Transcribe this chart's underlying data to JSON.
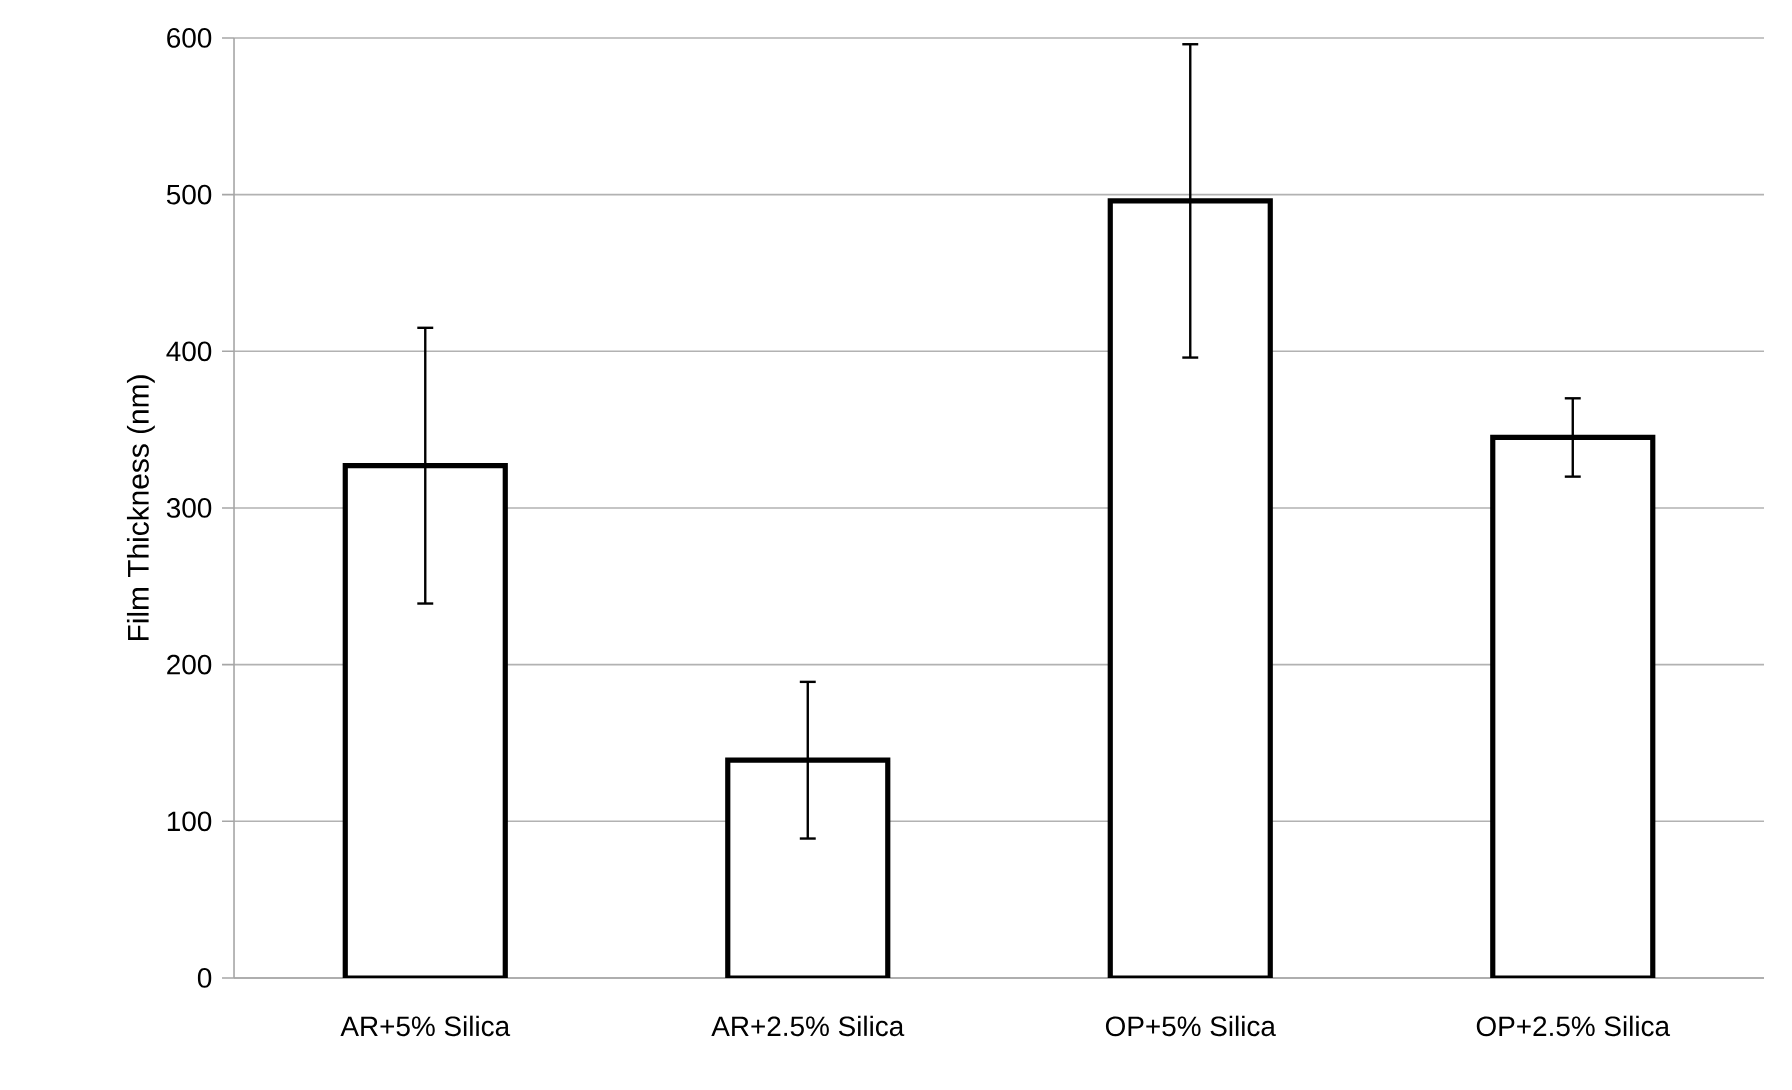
{
  "chart_data": {
    "type": "bar",
    "ylabel": "Film Thickness (nm)",
    "categories": [
      "AR+5% Silica",
      "AR+2.5% Silica",
      "OP+5% Silica",
      "OP+2.5% Silica"
    ],
    "values": [
      327,
      139,
      496,
      345
    ],
    "errors": [
      88,
      50,
      100,
      25
    ],
    "color": "#ffffff",
    "ylim": [
      0,
      600
    ],
    "yticks": [
      0,
      100,
      200,
      300,
      400,
      500,
      600
    ],
    "grid": "y"
  }
}
